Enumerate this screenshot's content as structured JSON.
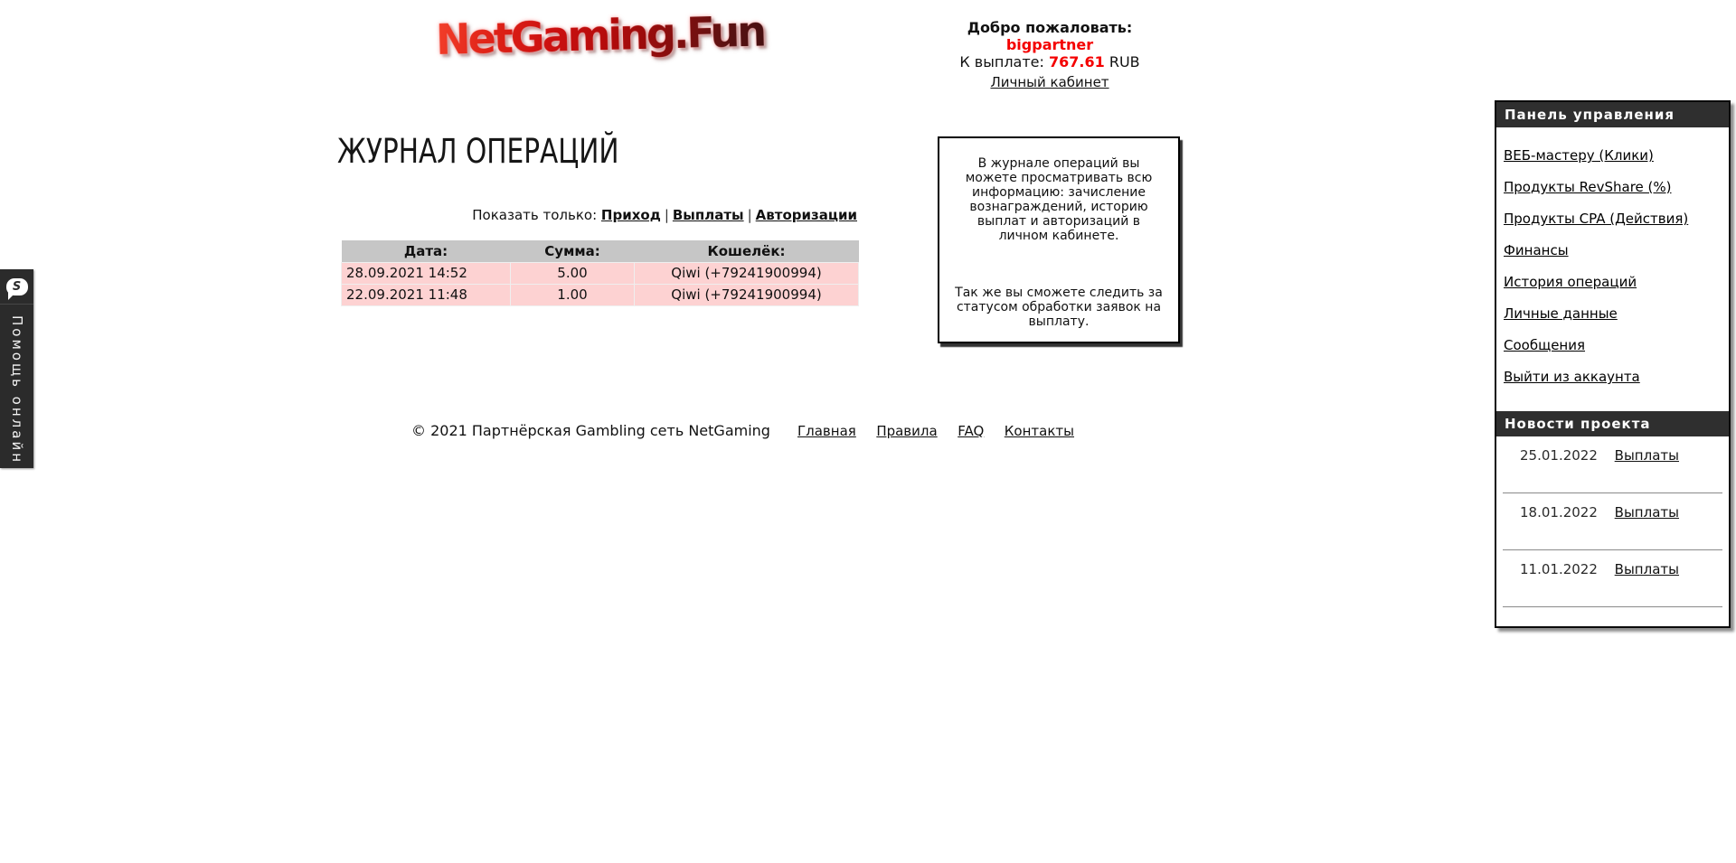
{
  "colors": {
    "accent_red": "#f40000",
    "panel_bar_bg": "#2f2f2f",
    "table_header_bg": "#c6c6c6",
    "table_row_bg": "#fdd2d2",
    "chat_bar_bg": "#2b2b2b"
  },
  "logo": {
    "text": "NetGaming.Fun"
  },
  "welcome": {
    "greeting_label": "Добро пожаловать:",
    "username": "bigpartner",
    "payout_label": "К выплате:",
    "payout_amount": "767.61",
    "payout_currency": "RUB",
    "cabinet_link": "Личный кабинет"
  },
  "chat_bar": {
    "label": "Помощь онлайн",
    "icon_letter": "S"
  },
  "main": {
    "heading": "ЖУРНАЛ ОПЕРАЦИЙ",
    "filter": {
      "label": "Показать только:",
      "separator": "|",
      "links": [
        "Приход",
        "Выплаты",
        "Авторизации"
      ]
    },
    "table": {
      "headers": [
        "Дата:",
        "Сумма:",
        "Кошелёк:"
      ],
      "rows": [
        [
          "28.09.2021 14:52",
          "5.00",
          "Qiwi (+79241900994)"
        ],
        [
          "22.09.2021 11:48",
          "1.00",
          "Qiwi (+79241900994)"
        ]
      ]
    },
    "info_box": {
      "paragraph1": "В журнале операций вы можете просматривать всю информацию: зачисление вознаграждений, историю выплат и авторизаций в личном кабинете.",
      "paragraph2": "Так же вы сможете следить за статусом обработки заявок на выплату."
    }
  },
  "footer": {
    "copyright": "© 2021 Партнёрская Gambling сеть NetGaming",
    "links": [
      "Главная",
      "Правила",
      "FAQ",
      "Контакты"
    ]
  },
  "sidebar": {
    "panel_title": "Панель управления",
    "items": [
      {
        "label": "ВЕБ-мастеру (Клики)"
      },
      {
        "label": "Продукты RevShare (%)"
      },
      {
        "label": "Продукты CPA (Действия)"
      },
      {
        "label": "Финансы"
      },
      {
        "label": "История операций"
      },
      {
        "label": "Личные данные"
      },
      {
        "label": "Сообщения"
      },
      {
        "label": "Выйти из аккаунта"
      }
    ],
    "news_title": "Новости проекта",
    "news": [
      {
        "date": "25.01.2022",
        "link": "Выплаты"
      },
      {
        "date": "18.01.2022",
        "link": "Выплаты"
      },
      {
        "date": "11.01.2022",
        "link": "Выплаты"
      }
    ]
  }
}
